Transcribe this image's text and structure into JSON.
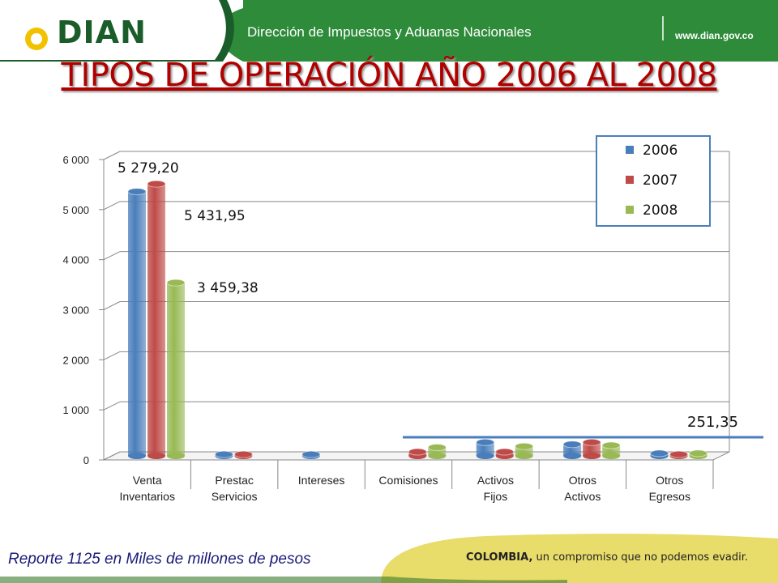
{
  "header": {
    "logo_text": "DIAN",
    "subtitle": "Dirección de Impuestos y Aduanas Nacionales",
    "url": "www.dian.gov.co"
  },
  "slide_title": "TIPOS DE OPERACIÓN AÑO 2006 AL 2008",
  "footer": {
    "note": "Reporte 1125 en Miles de millones de pesos",
    "slogan_bold": "COLOMBIA,",
    "slogan_rest": " un compromiso que no podemos evadir."
  },
  "colors": {
    "header_green": "#2e8b3a",
    "header_dark": "#1a5c2a",
    "title_red": "#b00000",
    "s2006": "#4a7ebb",
    "s2007": "#be4b48",
    "s2008": "#98b954",
    "footer_yellow": "#e8dc6a",
    "ref_line": "#4a7ebb"
  },
  "chart_data": {
    "type": "bar",
    "categories": [
      "Venta Inventarios",
      "Prestac Servicios",
      "Intereses",
      "Comisiones",
      "Activos Fijos",
      "Otros Activos",
      "Otros Egresos"
    ],
    "series": [
      {
        "name": "2006",
        "values": [
          5279.2,
          30,
          30,
          0,
          270,
          230,
          50
        ]
      },
      {
        "name": "2007",
        "values": [
          5431.95,
          30,
          0,
          80,
          80,
          270,
          30
        ]
      },
      {
        "name": "2008",
        "values": [
          3459.38,
          0,
          0,
          170,
          190,
          210,
          50
        ]
      }
    ],
    "ylim": [
      0,
      6000
    ],
    "yticks": [
      "0",
      "1 000",
      "2 000",
      "3 000",
      "4 000",
      "5 000",
      "6 000"
    ],
    "data_labels": [
      "5 279,20",
      "5 431,95",
      "3 459,38",
      "251,35"
    ],
    "reference_line_value": 251.35,
    "legend_position": "top-right",
    "grid": true
  }
}
